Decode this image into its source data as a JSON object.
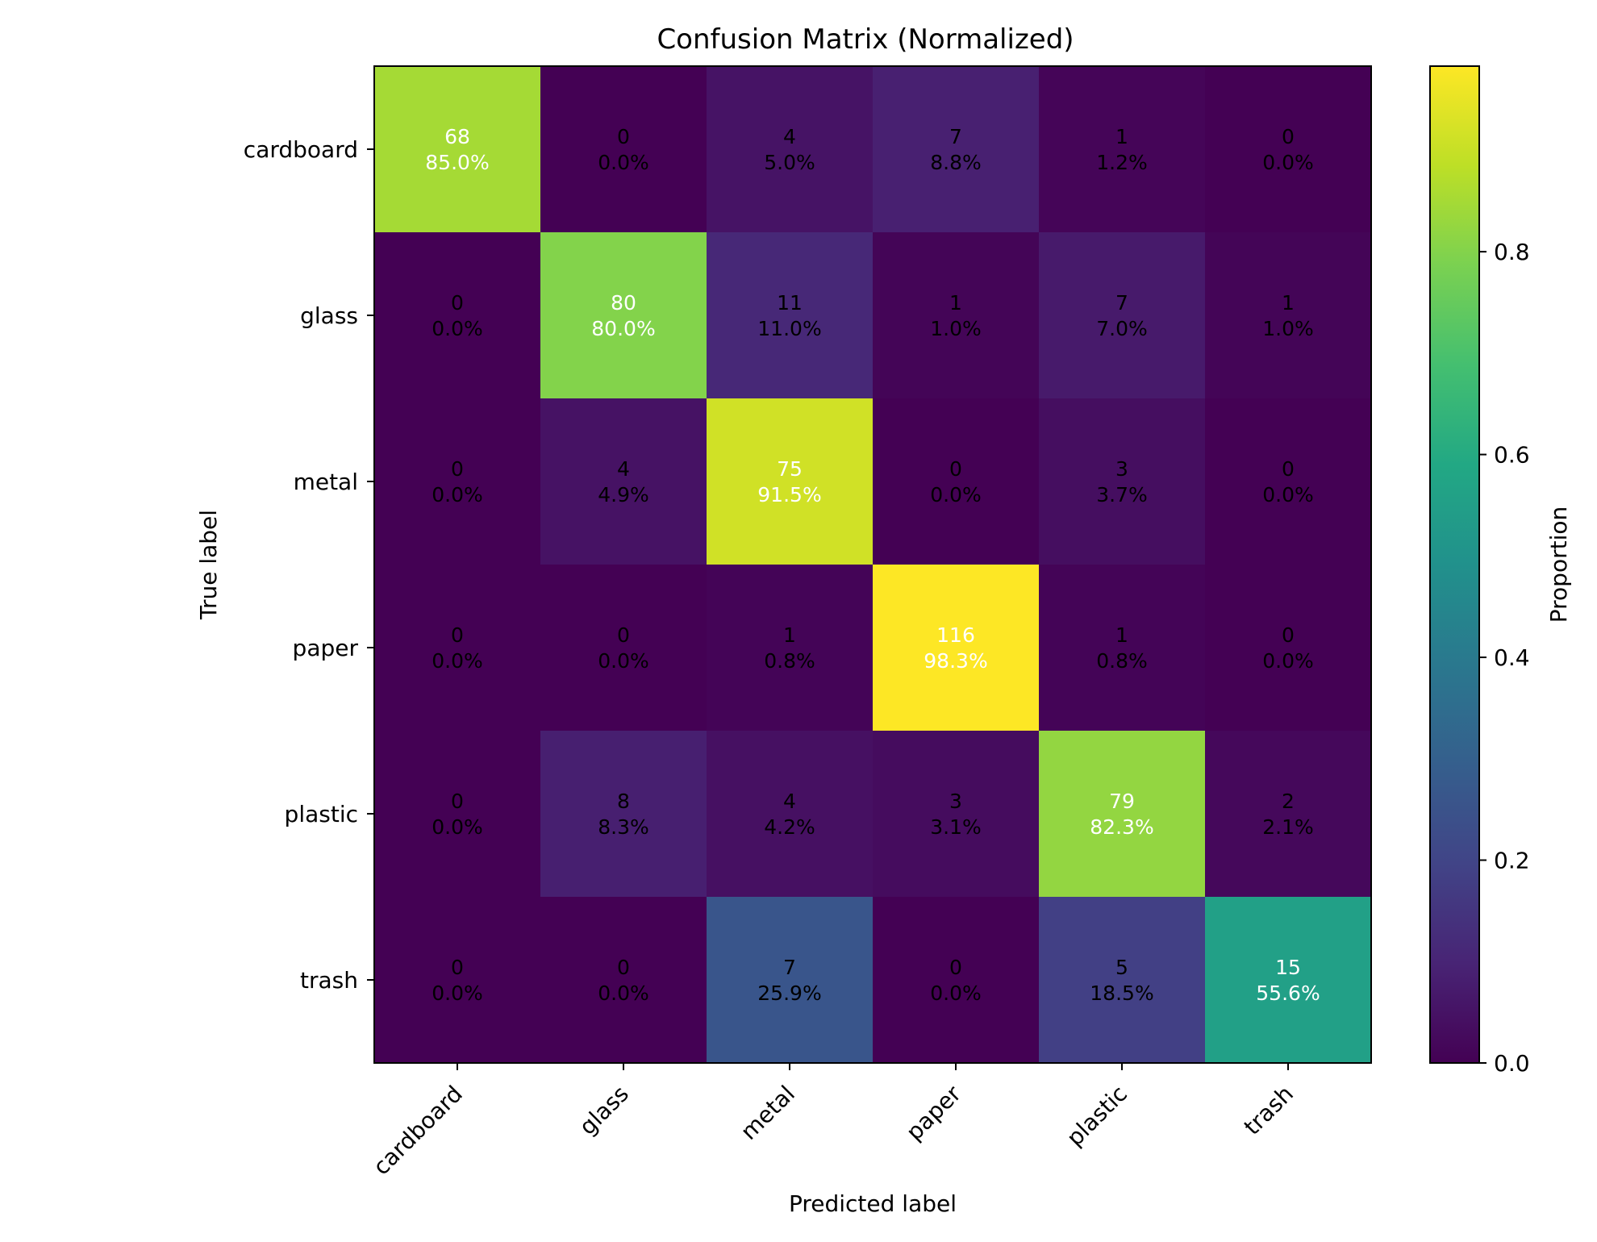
{
  "chart_data": {
    "type": "heatmap",
    "title": "Confusion Matrix (Normalized)",
    "xlabel": "Predicted label",
    "ylabel": "True label",
    "x_categories": [
      "cardboard",
      "glass",
      "metal",
      "paper",
      "plastic",
      "trash"
    ],
    "y_categories": [
      "cardboard",
      "glass",
      "metal",
      "paper",
      "plastic",
      "trash"
    ],
    "counts": [
      [
        68,
        0,
        4,
        7,
        1,
        0
      ],
      [
        0,
        80,
        11,
        1,
        7,
        1
      ],
      [
        0,
        4,
        75,
        0,
        3,
        0
      ],
      [
        0,
        0,
        1,
        116,
        1,
        0
      ],
      [
        0,
        8,
        4,
        3,
        79,
        2
      ],
      [
        0,
        0,
        7,
        0,
        5,
        15
      ]
    ],
    "percent_labels": [
      [
        "85.0%",
        "0.0%",
        "5.0%",
        "8.8%",
        "1.2%",
        "0.0%"
      ],
      [
        "0.0%",
        "80.0%",
        "11.0%",
        "1.0%",
        "7.0%",
        "1.0%"
      ],
      [
        "0.0%",
        "4.9%",
        "91.5%",
        "0.0%",
        "3.7%",
        "0.0%"
      ],
      [
        "0.0%",
        "0.0%",
        "0.8%",
        "98.3%",
        "0.8%",
        "0.0%"
      ],
      [
        "0.0%",
        "8.3%",
        "4.2%",
        "3.1%",
        "82.3%",
        "2.1%"
      ],
      [
        "0.0%",
        "0.0%",
        "25.9%",
        "0.0%",
        "18.5%",
        "55.6%"
      ]
    ],
    "colorbar": {
      "label": "Proportion",
      "colormap": "viridis",
      "range": [
        0,
        0.983
      ],
      "ticks": [
        0.0,
        0.2,
        0.4,
        0.6,
        0.8
      ],
      "tick_labels": [
        "0.0",
        "0.2",
        "0.4",
        "0.6",
        "0.8"
      ]
    },
    "grid": false
  }
}
